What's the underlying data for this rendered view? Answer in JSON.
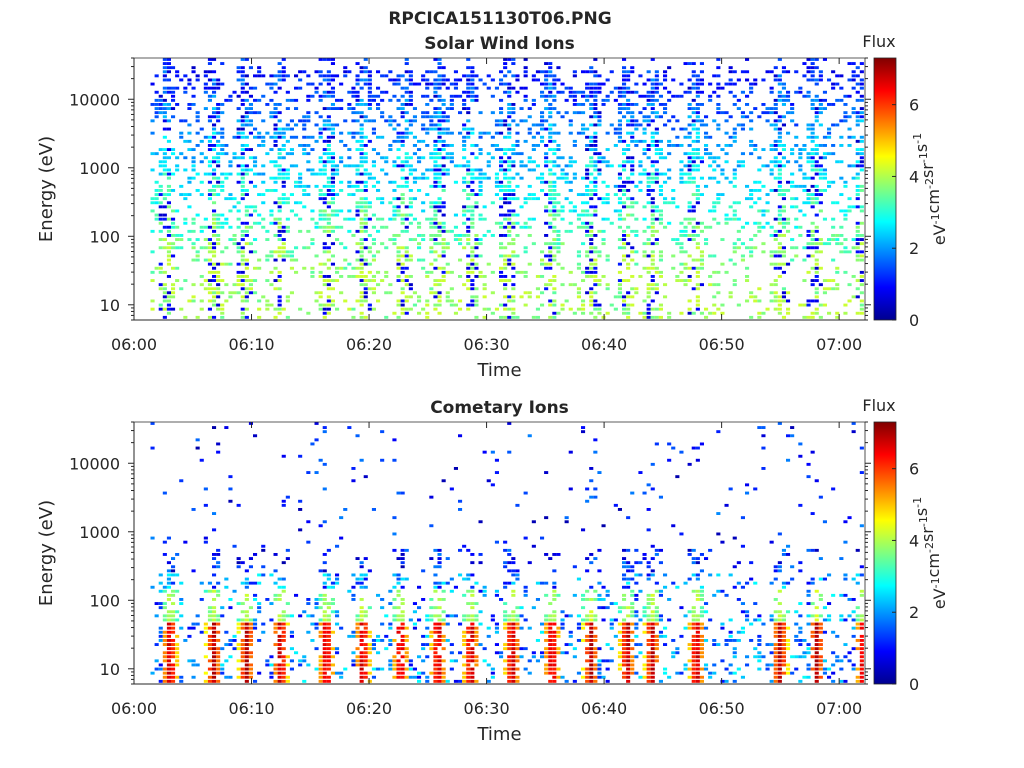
{
  "page_title": "RPCICA151130T06.PNG",
  "chart_data": [
    {
      "type": "heatmap",
      "title": "Solar Wind Ions",
      "xlabel": "Time",
      "ylabel": "Energy (eV)",
      "x_ticks": [
        "06:00",
        "06:10",
        "06:20",
        "06:30",
        "06:40",
        "06:50",
        "07:00"
      ],
      "x_tick_minutes": [
        0,
        10,
        20,
        30,
        40,
        50,
        60
      ],
      "xlim_minutes": [
        0,
        62.2
      ],
      "y_scale": "log",
      "y_ticks": [
        "10",
        "100",
        "1000",
        "10000"
      ],
      "y_tick_values": [
        10,
        100,
        1000,
        10000
      ],
      "ylim": [
        6,
        40000
      ],
      "colorbar": {
        "label": "Flux",
        "unit": "eV-1cm-2sr-1s-1",
        "ticks": [
          "0",
          "2",
          "4",
          "6"
        ],
        "tick_values": [
          0,
          2,
          4,
          6
        ],
        "range": [
          0,
          7.3
        ]
      },
      "colormap": "jet",
      "bursts_minutes": [
        2.6,
        6.7,
        9.2,
        12.2,
        16.3,
        19.3,
        22.8,
        25.8,
        28.4,
        31.6,
        35.3,
        38.8,
        41.8,
        44.0,
        47.6,
        54.9,
        57.8,
        61.9
      ],
      "background_flux": [
        0.4,
        3.6
      ],
      "burst_peak_flux": 3.8,
      "dense_energy_range": [
        10,
        20000
      ]
    },
    {
      "type": "heatmap",
      "title": "Cometary Ions",
      "xlabel": "Time",
      "ylabel": "Energy (eV)",
      "x_ticks": [
        "06:00",
        "06:10",
        "06:20",
        "06:30",
        "06:40",
        "06:50",
        "07:00"
      ],
      "x_tick_minutes": [
        0,
        10,
        20,
        30,
        40,
        50,
        60
      ],
      "xlim_minutes": [
        0,
        62.2
      ],
      "y_scale": "log",
      "y_ticks": [
        "10",
        "100",
        "1000",
        "10000"
      ],
      "y_tick_values": [
        10,
        100,
        1000,
        10000
      ],
      "ylim": [
        6,
        40000
      ],
      "colorbar": {
        "label": "Flux",
        "unit": "eV-1cm-2sr-1s-1",
        "ticks": [
          "0",
          "2",
          "4",
          "6"
        ],
        "tick_values": [
          0,
          2,
          4,
          6
        ],
        "range": [
          0,
          7.3
        ]
      },
      "colormap": "jet",
      "bursts_minutes": [
        2.9,
        6.6,
        9.4,
        12.3,
        16.2,
        19.3,
        22.5,
        25.7,
        28.5,
        32.0,
        35.4,
        38.7,
        41.8,
        43.9,
        47.7,
        54.8,
        57.9,
        61.9
      ],
      "background_flux": [
        0.5,
        3.0
      ],
      "burst_peak_flux": 6.8,
      "sparse_energy_range": [
        200,
        12000
      ]
    }
  ]
}
